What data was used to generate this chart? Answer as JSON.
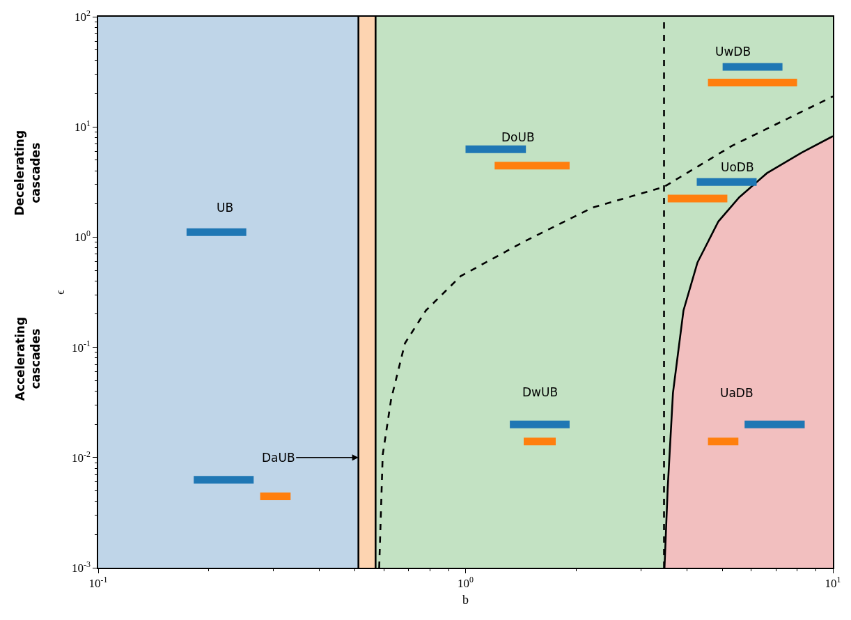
{
  "chart_data": {
    "type": "line",
    "xlabel": "b",
    "ylabel": "ϵ",
    "log": "xy",
    "grid": false,
    "xlim": [
      0.1,
      10
    ],
    "ylim": [
      0.001,
      100
    ],
    "xticks": [
      {
        "value": 0.1,
        "label": "10$^{-1}$"
      },
      {
        "value": 1,
        "label": "10$^{0}$"
      },
      {
        "value": 10,
        "label": "10$^{1}$"
      }
    ],
    "yticks": [
      {
        "value": 0.001,
        "label": "10$^{-3}$"
      },
      {
        "value": 0.01,
        "label": "10$^{-2}$"
      },
      {
        "value": 0.1,
        "label": "10$^{-1}$"
      },
      {
        "value": 1,
        "label": "10$^{0}$"
      },
      {
        "value": 10,
        "label": "10$^{1}$"
      },
      {
        "value": 100,
        "label": "10$^{2}$"
      }
    ],
    "bands": [
      {
        "axis": "x",
        "from": 0.1,
        "to": 0.511,
        "color": "#bfd5e8"
      },
      {
        "axis": "x",
        "from": 0.511,
        "to": 0.569,
        "color": "#fdd4b1"
      },
      {
        "axis": "x",
        "from": 0.569,
        "to": 10,
        "color": "#c3e2c3"
      }
    ],
    "ref_lines": [
      {
        "axis": "x",
        "value": 0.511,
        "color": "#000000",
        "line_style": "solid"
      },
      {
        "axis": "x",
        "value": 0.569,
        "color": "#000000",
        "line_style": "solid"
      },
      {
        "axis": "x",
        "value": 3.47,
        "color": "#000000",
        "line_style": "dashed"
      }
    ],
    "series": [
      {
        "type": "area",
        "color": "#f2bfbf",
        "x": [
          3.48,
          3.55,
          3.67,
          3.92,
          4.28,
          4.88,
          5.56,
          6.61,
          8.22,
          10
        ],
        "values": [
          0.001,
          0.0052,
          0.0387,
          0.216,
          0.59,
          1.39,
          2.3,
          3.8,
          5.85,
          8.25
        ]
      },
      {
        "color": "#000000",
        "line_style": "dashed",
        "x": [
          0.582,
          0.595,
          0.627,
          0.684,
          0.78,
          0.97,
          1.44,
          2.22,
          3.47,
          5.32,
          10
        ],
        "values": [
          0.001,
          0.0106,
          0.0336,
          0.109,
          0.216,
          0.443,
          0.907,
          1.86,
          2.86,
          6.75,
          18.9
        ]
      },
      {
        "color": "#1f77b4",
        "x": [
          0.174,
          0.253
        ],
        "values": [
          1.11,
          1.11
        ]
      },
      {
        "color": "#1f77b4",
        "x": [
          0.182,
          0.265
        ],
        "values": [
          0.00627,
          0.00627
        ]
      },
      {
        "color": "#ff7f0e",
        "x": [
          0.276,
          0.334
        ],
        "values": [
          0.00445,
          0.00445
        ]
      },
      {
        "color": "#1f77b4",
        "x": [
          1.0,
          1.46
        ],
        "values": [
          6.28,
          6.28
        ]
      },
      {
        "color": "#ff7f0e",
        "x": [
          1.2,
          1.92
        ],
        "values": [
          4.46,
          4.46
        ]
      },
      {
        "color": "#1f77b4",
        "x": [
          1.32,
          1.92
        ],
        "values": [
          0.02,
          0.02
        ]
      },
      {
        "color": "#ff7f0e",
        "x": [
          1.44,
          1.76
        ],
        "values": [
          0.014,
          0.014
        ]
      },
      {
        "color": "#1f77b4",
        "x": [
          5.01,
          7.29
        ],
        "values": [
          35.1,
          35.1
        ]
      },
      {
        "color": "#ff7f0e",
        "x": [
          4.57,
          7.99
        ],
        "values": [
          25.3,
          25.3
        ]
      },
      {
        "color": "#1f77b4",
        "x": [
          4.26,
          6.2
        ],
        "values": [
          3.16,
          3.16
        ]
      },
      {
        "color": "#ff7f0e",
        "x": [
          3.55,
          5.16
        ],
        "values": [
          2.24,
          2.24
        ]
      },
      {
        "color": "#1f77b4",
        "x": [
          5.75,
          8.38
        ],
        "values": [
          0.02,
          0.02
        ]
      },
      {
        "color": "#ff7f0e",
        "x": [
          4.57,
          5.53
        ],
        "values": [
          0.014,
          0.014
        ]
      }
    ],
    "annotations": [
      "UB",
      {
        "text": "DaUB",
        "x": 0.511,
        "y": 0.01
      },
      "DoUB",
      "DwUB",
      "UwDB",
      "UoDB",
      "UaDB",
      "Decelerating cascades",
      "Accelerating cascades"
    ]
  }
}
